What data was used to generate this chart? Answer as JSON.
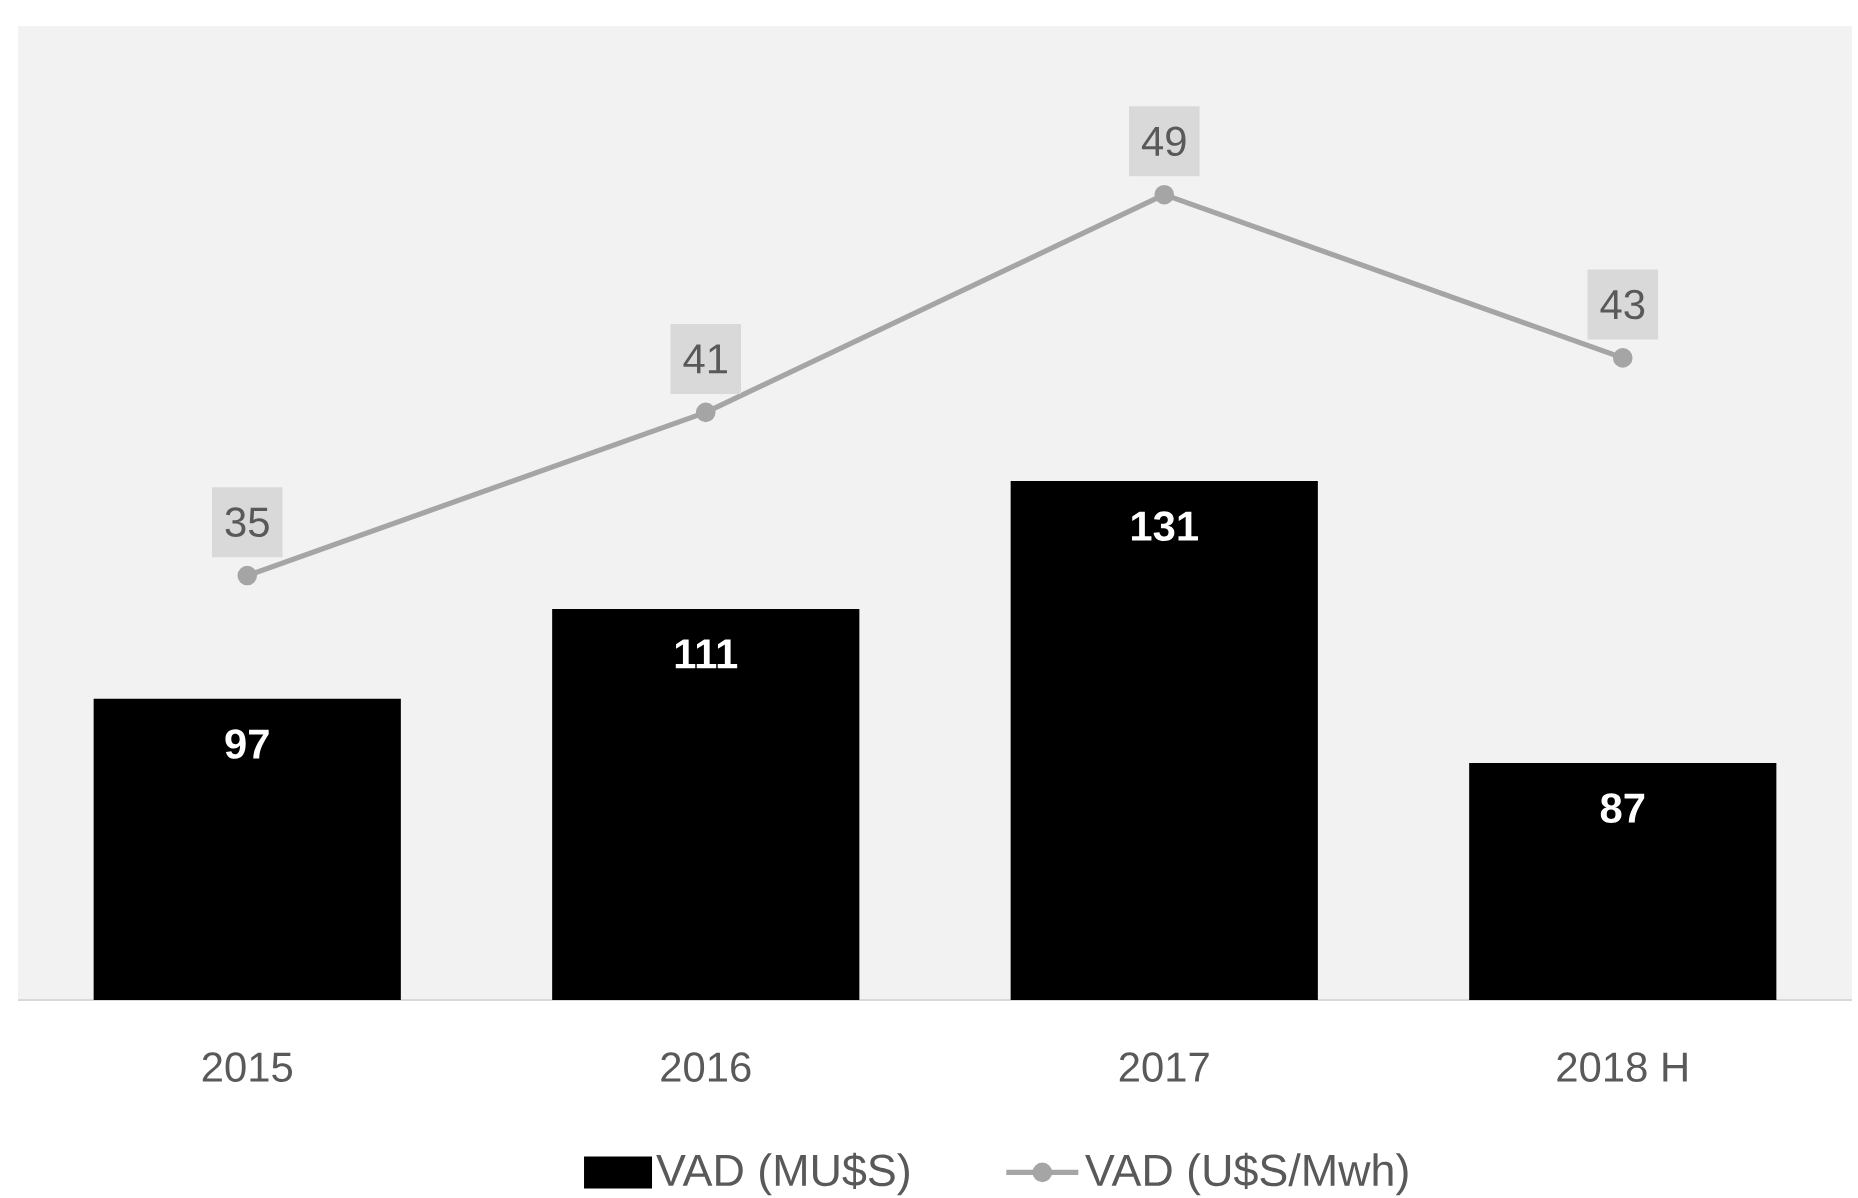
{
  "chart_data": {
    "type": "bar",
    "categories": [
      "2015",
      "2016",
      "2017",
      "2018 H"
    ],
    "series": [
      {
        "name": "VAD (MU$S)",
        "color": "#000000",
        "values": [
          97,
          111,
          131,
          87
        ]
      },
      {
        "name": "VAD (U$S/Mwh)",
        "type": "line",
        "axis": "y2",
        "color": "#a5a5a5",
        "values": [
          35,
          41,
          49,
          43
        ]
      }
    ],
    "ylim": [
      50,
      202
    ],
    "y2lim": [
      19.4,
      55.2
    ],
    "marker": "circle",
    "data_labels": true,
    "legend": "bottom",
    "tick_labels": "x"
  }
}
